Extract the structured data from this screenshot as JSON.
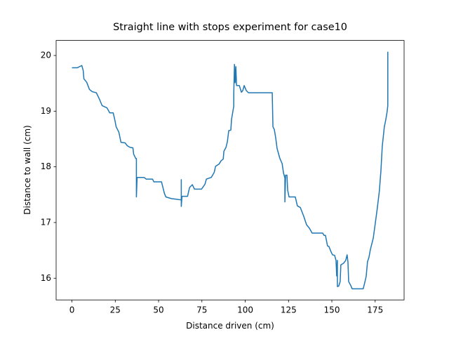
{
  "chart_data": {
    "type": "line",
    "title": "Straight line with stops experiment for case10",
    "x_label": "Distance driven (cm)",
    "y_label": "Distance to wall (cm)",
    "xlim": [
      -9.13,
      191.7
    ],
    "ylim": [
      15.61,
      20.27
    ],
    "xticks": [
      0,
      25,
      50,
      75,
      100,
      125,
      150,
      175
    ],
    "yticks": [
      16,
      17,
      18,
      19,
      20
    ],
    "x": [
      0,
      3.2,
      4.4,
      5.7,
      6.5,
      6.9,
      8.5,
      10.1,
      11.7,
      14.1,
      15.8,
      17.4,
      20.2,
      21.8,
      23.8,
      24.7,
      25.5,
      27.1,
      28.3,
      30.7,
      31.9,
      33.5,
      35.2,
      35.6,
      36.8,
      37.2,
      37.2,
      37.6,
      41.6,
      42.9,
      46.5,
      47.3,
      51.7,
      52.5,
      53.4,
      54.2,
      57.4,
      62.2,
      63.1,
      63.1,
      63.1,
      63.5,
      66.7,
      67.9,
      69.5,
      70.7,
      74.8,
      76.8,
      77.6,
      80.4,
      82.1,
      82.9,
      84.9,
      86.1,
      87.3,
      87.7,
      88.9,
      89.7,
      90.5,
      91.7,
      92.1,
      92.9,
      93.4,
      93.4,
      93.8,
      94.2,
      94.6,
      95.0,
      96.6,
      97.8,
      98.6,
      99.4,
      100.6,
      101.9,
      115.6,
      116.0,
      116.8,
      117.6,
      118.4,
      120.0,
      121.3,
      122.1,
      122.9,
      122.9,
      123.3,
      124.1,
      124.5,
      125.3,
      128.9,
      130.1,
      131.8,
      133.8,
      135.4,
      137.0,
      138.6,
      144.7,
      145.5,
      146.3,
      147.5,
      148.3,
      149.6,
      150.4,
      151.6,
      152.4,
      152.8,
      153.2,
      153.2,
      154.0,
      154.8,
      155.2,
      156.8,
      158.0,
      158.8,
      159.3,
      159.7,
      160.9,
      161.7,
      168.1,
      168.9,
      169.8,
      170.6,
      171.4,
      172.2,
      173.9,
      175.0,
      176.2,
      177.4,
      178.3,
      179.1,
      180.3,
      181.1,
      181.9,
      182.3,
      182.3,
      182.3
    ],
    "series": [
      {
        "color": "#1f77b4",
        "values": [
          19.78,
          19.78,
          19.8,
          19.82,
          19.73,
          19.58,
          19.52,
          19.39,
          19.35,
          19.33,
          19.22,
          19.1,
          19.06,
          18.97,
          18.97,
          18.85,
          18.72,
          18.62,
          18.44,
          18.43,
          18.38,
          18.35,
          18.34,
          18.23,
          18.15,
          18.15,
          17.46,
          17.81,
          17.81,
          17.78,
          17.78,
          17.73,
          17.73,
          17.63,
          17.52,
          17.46,
          17.43,
          17.41,
          17.41,
          17.77,
          17.29,
          17.47,
          17.47,
          17.63,
          17.68,
          17.6,
          17.6,
          17.69,
          17.78,
          17.81,
          17.9,
          18.01,
          18.05,
          18.11,
          18.14,
          18.28,
          18.35,
          18.45,
          18.65,
          18.66,
          18.85,
          19.0,
          19.09,
          19.32,
          19.84,
          19.51,
          19.8,
          19.46,
          19.46,
          19.34,
          19.37,
          19.46,
          19.37,
          19.33,
          19.33,
          18.72,
          18.67,
          18.52,
          18.33,
          18.15,
          18.06,
          17.89,
          17.8,
          17.37,
          17.85,
          17.85,
          17.58,
          17.46,
          17.46,
          17.3,
          17.27,
          17.11,
          16.96,
          16.9,
          16.81,
          16.81,
          16.77,
          16.77,
          16.58,
          16.57,
          16.47,
          16.42,
          16.41,
          16.32,
          16.04,
          16.32,
          15.85,
          15.86,
          15.94,
          16.24,
          16.27,
          16.32,
          16.42,
          16.29,
          15.94,
          15.87,
          15.81,
          15.81,
          15.91,
          16.03,
          16.3,
          16.37,
          16.51,
          16.72,
          16.97,
          17.25,
          17.56,
          17.92,
          18.37,
          18.72,
          18.84,
          18.99,
          19.1,
          20.06,
          20.01
        ]
      }
    ]
  }
}
